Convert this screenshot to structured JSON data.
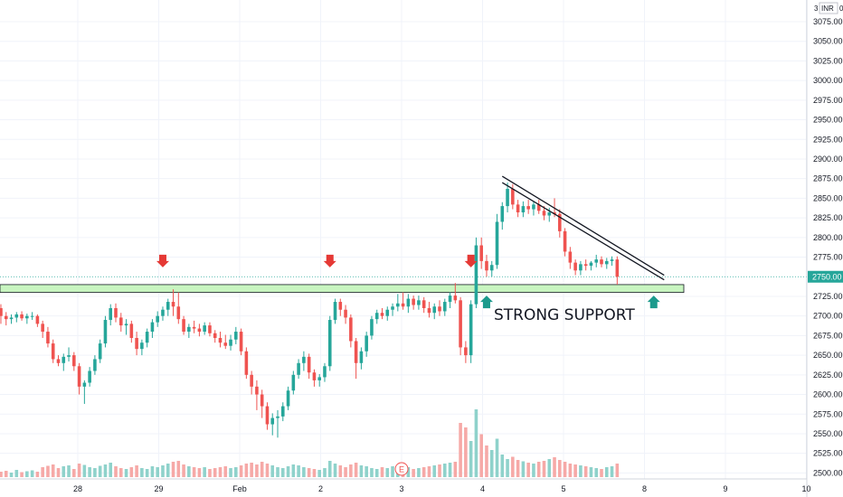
{
  "chart_data": {
    "type": "candlestick",
    "currency_label": "INR",
    "top_clip_left": "3",
    "top_clip_right": "0",
    "y_ticks": [
      2500,
      2525,
      2550,
      2575,
      2600,
      2625,
      2650,
      2675,
      2700,
      2725,
      2775,
      2800,
      2825,
      2850,
      2875,
      2900,
      2925,
      2950,
      2975,
      3000,
      3025,
      3050,
      3075
    ],
    "y_tick_labels": [
      "2500.00",
      "2525.00",
      "2550.00",
      "2575.00",
      "2600.00",
      "2625.00",
      "2650.00",
      "2675.00",
      "2700.00",
      "2725.00",
      "2775.00",
      "2800.00",
      "2825.00",
      "2850.00",
      "2875.00",
      "2900.00",
      "2925.00",
      "2950.00",
      "2975.00",
      "3000.00",
      "3025.00",
      "3050.00",
      "3075.00"
    ],
    "current_price": 2750,
    "current_price_label": "2750.00",
    "ylim": [
      2497,
      3098
    ],
    "x_ticks": [
      {
        "label": "28",
        "day": 0
      },
      {
        "label": "29",
        "day": 1
      },
      {
        "label": "Feb",
        "day": 2
      },
      {
        "label": "2",
        "day": 3
      },
      {
        "label": "3",
        "day": 4
      },
      {
        "label": "4",
        "day": 5
      },
      {
        "label": "5",
        "day": 6
      },
      {
        "label": "8",
        "day": 7
      },
      {
        "label": "9",
        "day": 8
      },
      {
        "label": "10",
        "day": 9
      }
    ],
    "candles": [
      [
        2710,
        2715,
        2690,
        2700
      ],
      [
        2700,
        2705,
        2688,
        2696
      ],
      [
        2696,
        2702,
        2690,
        2698
      ],
      [
        2698,
        2705,
        2692,
        2702
      ],
      [
        2702,
        2706,
        2694,
        2697
      ],
      [
        2697,
        2703,
        2690,
        2700
      ],
      [
        2700,
        2705,
        2695,
        2700
      ],
      [
        2700,
        2702,
        2686,
        2690
      ],
      [
        2690,
        2694,
        2672,
        2680
      ],
      [
        2680,
        2686,
        2660,
        2665
      ],
      [
        2665,
        2670,
        2640,
        2645
      ],
      [
        2645,
        2650,
        2636,
        2640
      ],
      [
        2640,
        2652,
        2630,
        2648
      ],
      [
        2648,
        2660,
        2642,
        2650
      ],
      [
        2650,
        2654,
        2630,
        2636
      ],
      [
        2636,
        2640,
        2600,
        2610
      ],
      [
        2610,
        2618,
        2588,
        2615
      ],
      [
        2615,
        2635,
        2610,
        2630
      ],
      [
        2630,
        2650,
        2625,
        2645
      ],
      [
        2645,
        2670,
        2640,
        2665
      ],
      [
        2665,
        2700,
        2660,
        2695
      ],
      [
        2695,
        2715,
        2688,
        2710
      ],
      [
        2710,
        2716,
        2692,
        2698
      ],
      [
        2698,
        2704,
        2680,
        2688
      ],
      [
        2688,
        2696,
        2676,
        2690
      ],
      [
        2690,
        2694,
        2666,
        2672
      ],
      [
        2672,
        2680,
        2650,
        2658
      ],
      [
        2658,
        2670,
        2650,
        2666
      ],
      [
        2666,
        2684,
        2660,
        2680
      ],
      [
        2680,
        2696,
        2672,
        2692
      ],
      [
        2692,
        2706,
        2686,
        2700
      ],
      [
        2700,
        2712,
        2694,
        2708
      ],
      [
        2708,
        2722,
        2700,
        2718
      ],
      [
        2718,
        2734,
        2700,
        2712
      ],
      [
        2712,
        2730,
        2690,
        2696
      ],
      [
        2696,
        2700,
        2676,
        2680
      ],
      [
        2680,
        2690,
        2672,
        2686
      ],
      [
        2686,
        2694,
        2678,
        2684
      ],
      [
        2684,
        2690,
        2674,
        2680
      ],
      [
        2680,
        2692,
        2676,
        2688
      ],
      [
        2688,
        2692,
        2674,
        2678
      ],
      [
        2678,
        2682,
        2666,
        2672
      ],
      [
        2672,
        2680,
        2660,
        2666
      ],
      [
        2666,
        2676,
        2658,
        2662
      ],
      [
        2662,
        2676,
        2656,
        2670
      ],
      [
        2670,
        2686,
        2664,
        2680
      ],
      [
        2680,
        2684,
        2650,
        2655
      ],
      [
        2655,
        2660,
        2620,
        2625
      ],
      [
        2625,
        2630,
        2600,
        2610
      ],
      [
        2610,
        2618,
        2580,
        2600
      ],
      [
        2600,
        2606,
        2570,
        2585
      ],
      [
        2585,
        2590,
        2555,
        2562
      ],
      [
        2562,
        2576,
        2548,
        2570
      ],
      [
        2570,
        2580,
        2545,
        2572
      ],
      [
        2572,
        2590,
        2566,
        2585
      ],
      [
        2585,
        2610,
        2580,
        2605
      ],
      [
        2605,
        2630,
        2600,
        2625
      ],
      [
        2625,
        2645,
        2620,
        2640
      ],
      [
        2640,
        2655,
        2630,
        2648
      ],
      [
        2648,
        2652,
        2620,
        2628
      ],
      [
        2628,
        2632,
        2610,
        2618
      ],
      [
        2618,
        2626,
        2610,
        2622
      ],
      [
        2622,
        2640,
        2616,
        2636
      ],
      [
        2636,
        2700,
        2630,
        2695
      ],
      [
        2695,
        2722,
        2690,
        2718
      ],
      [
        2718,
        2722,
        2700,
        2708
      ],
      [
        2708,
        2714,
        2690,
        2698
      ],
      [
        2698,
        2702,
        2660,
        2668
      ],
      [
        2668,
        2672,
        2620,
        2640
      ],
      [
        2640,
        2660,
        2632,
        2655
      ],
      [
        2655,
        2680,
        2648,
        2675
      ],
      [
        2675,
        2700,
        2670,
        2696
      ],
      [
        2696,
        2708,
        2690,
        2704
      ],
      [
        2704,
        2710,
        2696,
        2700
      ],
      [
        2700,
        2712,
        2694,
        2708
      ],
      [
        2708,
        2716,
        2700,
        2712
      ],
      [
        2712,
        2728,
        2706,
        2716
      ],
      [
        2716,
        2730,
        2708,
        2712
      ],
      [
        2712,
        2728,
        2704,
        2722
      ],
      [
        2722,
        2726,
        2708,
        2714
      ],
      [
        2714,
        2726,
        2708,
        2720
      ],
      [
        2720,
        2724,
        2704,
        2710
      ],
      [
        2710,
        2718,
        2698,
        2704
      ],
      [
        2704,
        2716,
        2696,
        2712
      ],
      [
        2712,
        2720,
        2700,
        2706
      ],
      [
        2706,
        2722,
        2700,
        2718
      ],
      [
        2718,
        2730,
        2710,
        2726
      ],
      [
        2726,
        2742,
        2716,
        2720
      ],
      [
        2720,
        2724,
        2650,
        2660
      ],
      [
        2660,
        2668,
        2640,
        2650
      ],
      [
        2650,
        2720,
        2640,
        2715
      ],
      [
        2715,
        2800,
        2710,
        2790
      ],
      [
        2790,
        2800,
        2760,
        2770
      ],
      [
        2770,
        2778,
        2750,
        2758
      ],
      [
        2758,
        2770,
        2750,
        2765
      ],
      [
        2765,
        2830,
        2760,
        2820
      ],
      [
        2820,
        2845,
        2810,
        2840
      ],
      [
        2840,
        2870,
        2832,
        2862
      ],
      [
        2862,
        2868,
        2836,
        2842
      ],
      [
        2842,
        2848,
        2826,
        2832
      ],
      [
        2832,
        2846,
        2826,
        2840
      ],
      [
        2840,
        2848,
        2830,
        2836
      ],
      [
        2836,
        2846,
        2828,
        2842
      ],
      [
        2842,
        2848,
        2830,
        2834
      ],
      [
        2834,
        2840,
        2822,
        2828
      ],
      [
        2828,
        2838,
        2820,
        2832
      ],
      [
        2832,
        2850,
        2826,
        2830
      ],
      [
        2830,
        2836,
        2800,
        2808
      ],
      [
        2808,
        2812,
        2776,
        2782
      ],
      [
        2782,
        2788,
        2760,
        2768
      ],
      [
        2768,
        2772,
        2752,
        2758
      ],
      [
        2758,
        2770,
        2752,
        2766
      ],
      [
        2766,
        2772,
        2758,
        2764
      ],
      [
        2764,
        2770,
        2758,
        2768
      ],
      [
        2768,
        2778,
        2762,
        2772
      ],
      [
        2772,
        2776,
        2762,
        2766
      ],
      [
        2766,
        2774,
        2760,
        2770
      ],
      [
        2770,
        2776,
        2764,
        2772
      ],
      [
        2772,
        2776,
        2740,
        2750
      ]
    ],
    "volumes": [
      12,
      14,
      10,
      16,
      11,
      13,
      15,
      12,
      22,
      25,
      28,
      20,
      24,
      26,
      18,
      30,
      27,
      22,
      20,
      25,
      28,
      32,
      24,
      20,
      18,
      22,
      26,
      20,
      18,
      24,
      22,
      26,
      30,
      34,
      36,
      28,
      24,
      22,
      20,
      22,
      18,
      20,
      22,
      24,
      20,
      22,
      26,
      30,
      32,
      28,
      34,
      30,
      26,
      22,
      20,
      24,
      28,
      26,
      22,
      20,
      18,
      16,
      20,
      36,
      30,
      26,
      22,
      28,
      32,
      26,
      24,
      20,
      18,
      22,
      20,
      24,
      22,
      20,
      22,
      18,
      20,
      22,
      24,
      26,
      28,
      30,
      32,
      34,
      120,
      110,
      80,
      150,
      95,
      70,
      60,
      85,
      50,
      40,
      45,
      38,
      35,
      32,
      30,
      34,
      36,
      40,
      44,
      38,
      34,
      30,
      28,
      26,
      24,
      22,
      20,
      18,
      22,
      24,
      30
    ],
    "volume_max": 220,
    "horizontal_line_price": 2750,
    "support_zone": [
      2730,
      2740
    ],
    "trendline_upper": {
      "start": [
        96,
        2878
      ],
      "end": [
        127,
        2752
      ]
    },
    "trendline_lower": {
      "start": [
        96,
        2870
      ],
      "end": [
        127,
        2746
      ]
    },
    "down_arrows": [
      31,
      63,
      90
    ],
    "up_arrows": [
      93,
      125
    ],
    "annotation": "STRONG SUPPORT",
    "earnings_marker": "E",
    "colors": {
      "up": "#26a69a",
      "down": "#ef5350",
      "up_vol": "#8fd2cb",
      "down_vol": "#f6a9a7",
      "support_fill": "#c8f5c0",
      "price_label_bg": "#26a69a",
      "arrow_red": "#e53935",
      "arrow_teal": "#1b9a8c"
    }
  }
}
